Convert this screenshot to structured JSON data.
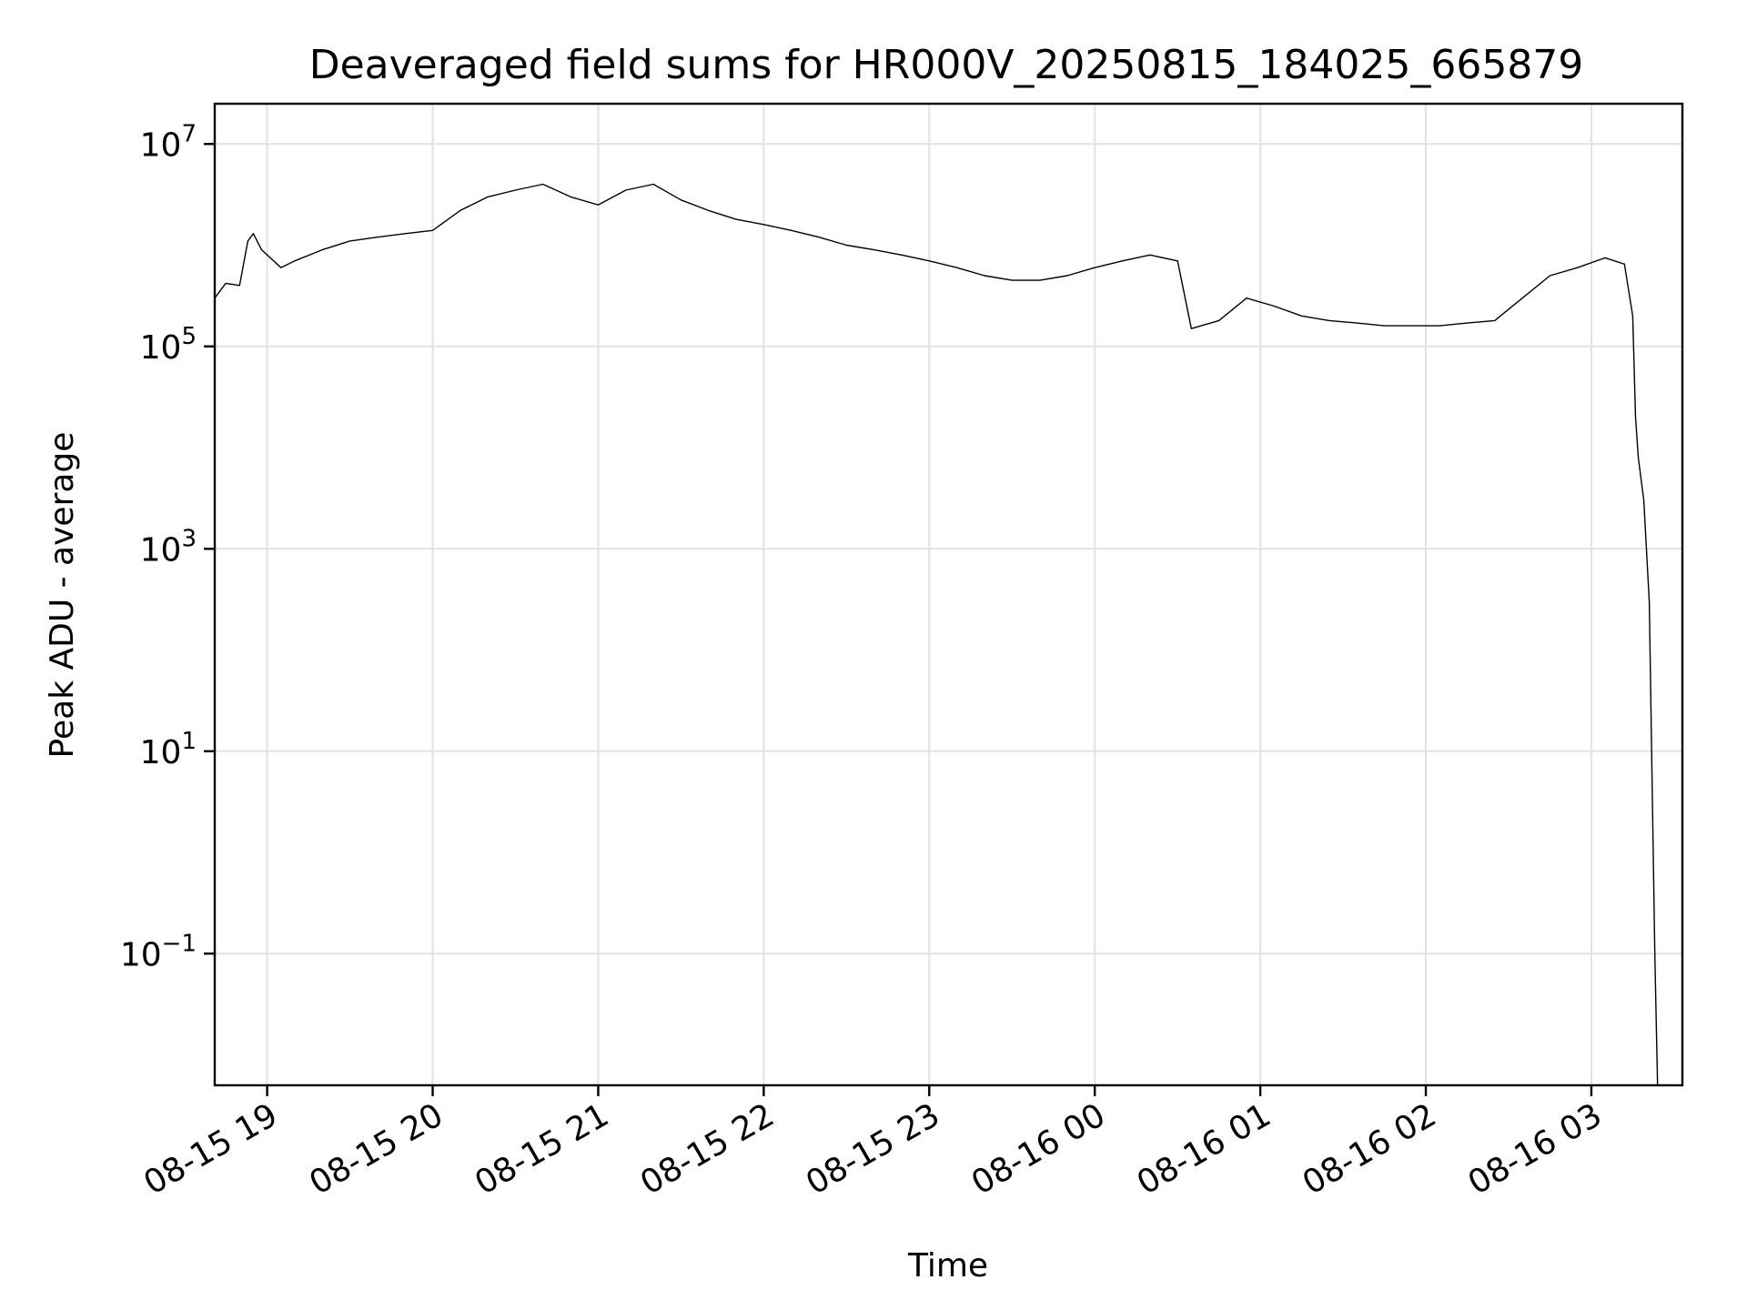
{
  "chart_data": {
    "type": "line",
    "title": "Deaveraged field sums for HR000V_20250815_184025_665879",
    "xlabel": "Time",
    "ylabel": "Peak ADU - average",
    "yscale": "log",
    "xlim": [
      "2025-08-15 18:41",
      "2025-08-16 03:33"
    ],
    "ylim": [
      0.005,
      25000000
    ],
    "grid": true,
    "line_color": "#000000",
    "x_ticks": [
      {
        "value": "2025-08-15 19:00",
        "label": "08-15 19"
      },
      {
        "value": "2025-08-15 20:00",
        "label": "08-15 20"
      },
      {
        "value": "2025-08-15 21:00",
        "label": "08-15 21"
      },
      {
        "value": "2025-08-15 22:00",
        "label": "08-15 22"
      },
      {
        "value": "2025-08-15 23:00",
        "label": "08-15 23"
      },
      {
        "value": "2025-08-16 00:00",
        "label": "08-16 00"
      },
      {
        "value": "2025-08-16 01:00",
        "label": "08-16 01"
      },
      {
        "value": "2025-08-16 02:00",
        "label": "08-16 02"
      },
      {
        "value": "2025-08-16 03:00",
        "label": "08-16 03"
      }
    ],
    "y_ticks": [
      {
        "value": 10000000,
        "base": "10",
        "exp": "7"
      },
      {
        "value": 100000,
        "base": "10",
        "exp": "5"
      },
      {
        "value": 1000,
        "base": "10",
        "exp": "3"
      },
      {
        "value": 10,
        "base": "10",
        "exp": "1"
      },
      {
        "value": 0.1,
        "base": "10",
        "exp": "−1"
      }
    ],
    "series": [
      {
        "x": [
          "2025-08-15 18:41",
          "2025-08-15 18:45",
          "2025-08-15 18:50",
          "2025-08-15 18:53",
          "2025-08-15 18:55",
          "2025-08-15 18:58",
          "2025-08-15 19:05",
          "2025-08-15 19:10",
          "2025-08-15 19:20",
          "2025-08-15 19:30",
          "2025-08-15 19:40",
          "2025-08-15 19:50",
          "2025-08-15 20:00",
          "2025-08-15 20:10",
          "2025-08-15 20:20",
          "2025-08-15 20:30",
          "2025-08-15 20:40",
          "2025-08-15 20:50",
          "2025-08-15 21:00",
          "2025-08-15 21:10",
          "2025-08-15 21:20",
          "2025-08-15 21:30",
          "2025-08-15 21:40",
          "2025-08-15 21:50",
          "2025-08-15 22:00",
          "2025-08-15 22:10",
          "2025-08-15 22:20",
          "2025-08-15 22:30",
          "2025-08-15 22:40",
          "2025-08-15 22:50",
          "2025-08-15 23:00",
          "2025-08-15 23:10",
          "2025-08-15 23:20",
          "2025-08-15 23:30",
          "2025-08-15 23:40",
          "2025-08-15 23:50",
          "2025-08-16 00:00",
          "2025-08-16 00:10",
          "2025-08-16 00:20",
          "2025-08-16 00:30",
          "2025-08-16 00:35",
          "2025-08-16 00:45",
          "2025-08-16 00:55",
          "2025-08-16 01:05",
          "2025-08-16 01:15",
          "2025-08-16 01:25",
          "2025-08-16 01:35",
          "2025-08-16 01:45",
          "2025-08-16 01:55",
          "2025-08-16 02:05",
          "2025-08-16 02:15",
          "2025-08-16 02:25",
          "2025-08-16 02:35",
          "2025-08-16 02:45",
          "2025-08-16 02:55",
          "2025-08-16 03:05",
          "2025-08-16 03:12",
          "2025-08-16 03:15",
          "2025-08-16 03:16",
          "2025-08-16 03:17",
          "2025-08-16 03:19",
          "2025-08-16 03:21",
          "2025-08-16 03:23",
          "2025-08-16 03:24"
        ],
        "y": [
          300000,
          420000,
          400000,
          1100000,
          1300000,
          900000,
          600000,
          700000,
          900000,
          1100000,
          1200000,
          1300000,
          1400000,
          2200000,
          3000000,
          3500000,
          4000000,
          3000000,
          2500000,
          3500000,
          4000000,
          2800000,
          2200000,
          1800000,
          1600000,
          1400000,
          1200000,
          1000000,
          900000,
          800000,
          700000,
          600000,
          500000,
          450000,
          450000,
          500000,
          600000,
          700000,
          800000,
          700000,
          150000,
          180000,
          300000,
          250000,
          200000,
          180000,
          170000,
          160000,
          160000,
          160000,
          170000,
          180000,
          300000,
          500000,
          600000,
          750000,
          650000,
          200000,
          20000,
          8000,
          3000,
          300,
          0.1,
          0.005
        ]
      }
    ]
  }
}
